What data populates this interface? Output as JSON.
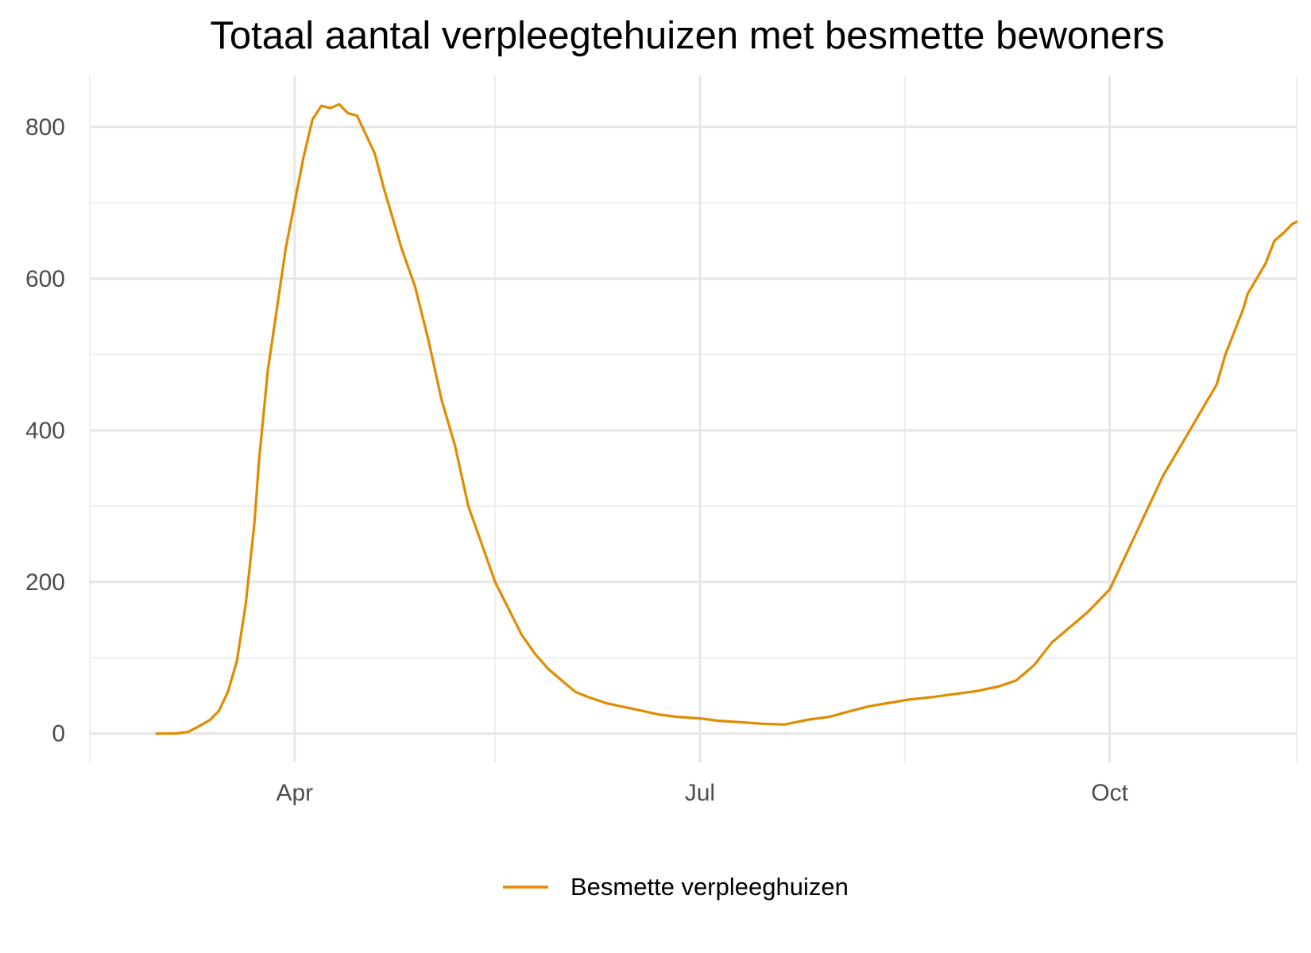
{
  "chart_data": {
    "type": "line",
    "title": "Totaal aantal verpleegtehuizen met besmette bewoners",
    "xlabel": "",
    "ylabel": "",
    "x_is_date": true,
    "xlim": [
      "2020-02-15",
      "2020-11-12"
    ],
    "ylim": [
      -38,
      868
    ],
    "x_ticks": [
      {
        "date": "2020-04-01",
        "label": "Apr"
      },
      {
        "date": "2020-07-01",
        "label": "Jul"
      },
      {
        "date": "2020-10-01",
        "label": "Oct"
      }
    ],
    "x_minor_ticks": [
      "2020-02-15",
      "2020-05-16",
      "2020-08-16",
      "2020-11-15"
    ],
    "y_ticks": [
      0,
      200,
      400,
      600,
      800
    ],
    "y_minor_ticks": [
      100,
      300,
      500,
      700
    ],
    "grid": true,
    "legend_position": "bottom",
    "series": [
      {
        "name": "Besmette verpleeghuizen",
        "color": "#E08B00",
        "x": [
          "2020-03-01",
          "2020-03-05",
          "2020-03-08",
          "2020-03-10",
          "2020-03-13",
          "2020-03-15",
          "2020-03-17",
          "2020-03-19",
          "2020-03-21",
          "2020-03-23",
          "2020-03-24",
          "2020-03-26",
          "2020-03-28",
          "2020-03-30",
          "2020-04-01",
          "2020-04-03",
          "2020-04-05",
          "2020-04-07",
          "2020-04-09",
          "2020-04-11",
          "2020-04-13",
          "2020-04-15",
          "2020-04-17",
          "2020-04-19",
          "2020-04-21",
          "2020-04-23",
          "2020-04-25",
          "2020-04-28",
          "2020-05-01",
          "2020-05-04",
          "2020-05-07",
          "2020-05-10",
          "2020-05-13",
          "2020-05-16",
          "2020-05-19",
          "2020-05-22",
          "2020-05-25",
          "2020-05-28",
          "2020-05-31",
          "2020-06-03",
          "2020-06-06",
          "2020-06-10",
          "2020-06-14",
          "2020-06-18",
          "2020-06-22",
          "2020-06-26",
          "2020-07-01",
          "2020-07-05",
          "2020-07-10",
          "2020-07-15",
          "2020-07-20",
          "2020-07-25",
          "2020-07-30",
          "2020-08-04",
          "2020-08-08",
          "2020-08-12",
          "2020-08-17",
          "2020-08-22",
          "2020-08-27",
          "2020-09-01",
          "2020-09-06",
          "2020-09-10",
          "2020-09-14",
          "2020-09-18",
          "2020-09-22",
          "2020-09-26",
          "2020-10-01",
          "2020-10-05",
          "2020-10-09",
          "2020-10-13",
          "2020-10-17",
          "2020-10-21",
          "2020-10-25",
          "2020-10-27",
          "2020-10-29",
          "2020-10-31",
          "2020-11-01",
          "2020-11-03",
          "2020-11-05",
          "2020-11-07",
          "2020-11-09",
          "2020-11-11",
          "2020-11-12"
        ],
        "y": [
          0,
          0,
          2,
          8,
          18,
          30,
          55,
          95,
          170,
          280,
          360,
          480,
          560,
          640,
          700,
          760,
          810,
          828,
          825,
          830,
          818,
          815,
          790,
          765,
          720,
          680,
          640,
          590,
          520,
          440,
          380,
          300,
          250,
          200,
          165,
          130,
          105,
          85,
          70,
          55,
          48,
          40,
          35,
          30,
          25,
          22,
          20,
          17,
          15,
          13,
          12,
          18,
          22,
          30,
          36,
          40,
          45,
          48,
          52,
          56,
          62,
          70,
          90,
          120,
          140,
          160,
          190,
          240,
          290,
          340,
          380,
          420,
          460,
          500,
          530,
          560,
          580,
          600,
          620,
          650,
          660,
          672,
          675
        ]
      }
    ]
  }
}
